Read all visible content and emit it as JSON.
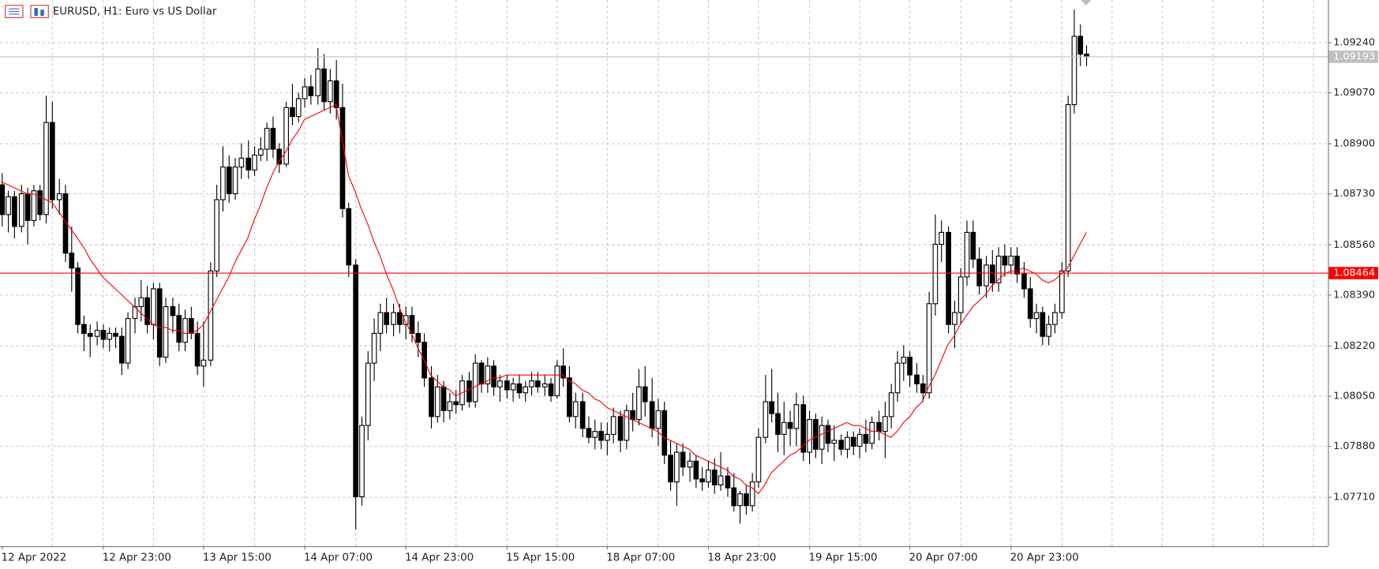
{
  "chart_data": {
    "type": "candlestick",
    "title": "EURUSD, H1:  Euro vs US Dollar",
    "categories": [
      "12 Apr 2022",
      null,
      null,
      null,
      null,
      null,
      null,
      null,
      null,
      null,
      null,
      null,
      null,
      null,
      null,
      null,
      "12 Apr 23:00",
      null,
      null,
      null,
      null,
      null,
      null,
      null,
      null,
      null,
      null,
      null,
      null,
      null,
      null,
      null,
      "13 Apr 15:00",
      null,
      null,
      null,
      null,
      null,
      null,
      null,
      null,
      null,
      null,
      null,
      null,
      null,
      null,
      null,
      "14 Apr 07:00",
      null,
      null,
      null,
      null,
      null,
      null,
      null,
      null,
      null,
      null,
      null,
      null,
      null,
      null,
      null,
      "14 Apr 23:00",
      null,
      null,
      null,
      null,
      null,
      null,
      null,
      null,
      null,
      null,
      null,
      null,
      null,
      null,
      null,
      "15 Apr 15:00",
      null,
      null,
      null,
      null,
      null,
      null,
      null,
      null,
      null,
      null,
      null,
      null,
      null,
      null,
      null,
      "18 Apr 07:00",
      null,
      null,
      null,
      null,
      null,
      null,
      null,
      null,
      null,
      null,
      null,
      null,
      null,
      null,
      null,
      "18 Apr 23:00",
      null,
      null,
      null,
      null,
      null,
      null,
      null,
      null,
      null,
      null,
      null,
      null,
      null,
      null,
      null,
      "19 Apr 15:00",
      null,
      null,
      null,
      null,
      null,
      null,
      null,
      null,
      null,
      null,
      null,
      null,
      null,
      null,
      null,
      "20 Apr 07:00",
      null,
      null,
      null,
      null,
      null,
      null,
      null,
      null,
      null,
      null,
      null,
      null,
      null,
      null,
      null,
      "20 Apr 23:00",
      null,
      null,
      null,
      null,
      null,
      null,
      null,
      null,
      null,
      null,
      null,
      null
    ],
    "ohlc": [
      [
        1.0876,
        1.088,
        1.0862,
        1.0866
      ],
      [
        1.0866,
        1.0874,
        1.086,
        1.0872
      ],
      [
        1.0872,
        1.0874,
        1.0858,
        1.0862
      ],
      [
        1.0862,
        1.0876,
        1.086,
        1.0873
      ],
      [
        1.0873,
        1.0875,
        1.0856,
        1.0864
      ],
      [
        1.0864,
        1.0876,
        1.0862,
        1.0874
      ],
      [
        1.0874,
        1.0876,
        1.0864,
        1.0866
      ],
      [
        1.0866,
        1.0906,
        1.0863,
        1.0897
      ],
      [
        1.0897,
        1.0904,
        1.0868,
        1.0871
      ],
      [
        1.0871,
        1.0878,
        1.0866,
        1.0873
      ],
      [
        1.0873,
        1.0876,
        1.085,
        1.0853
      ],
      [
        1.0853,
        1.0862,
        1.084,
        1.0848
      ],
      [
        1.0848,
        1.085,
        1.0826,
        1.0829
      ],
      [
        1.0829,
        1.0832,
        1.082,
        1.0826
      ],
      [
        1.0826,
        1.0829,
        1.0818,
        1.0825
      ],
      [
        1.0825,
        1.083,
        1.0822,
        1.0827
      ],
      [
        1.0827,
        1.0829,
        1.0821,
        1.0824
      ],
      [
        1.0824,
        1.0828,
        1.082,
        1.0826
      ],
      [
        1.0826,
        1.0828,
        1.0821,
        1.0825
      ],
      [
        1.0825,
        1.0828,
        1.0812,
        1.0816
      ],
      [
        1.0816,
        1.0833,
        1.0814,
        1.0831
      ],
      [
        1.0831,
        1.0838,
        1.0826,
        1.0835
      ],
      [
        1.0835,
        1.0844,
        1.083,
        1.0838
      ],
      [
        1.0838,
        1.0842,
        1.0826,
        1.0829
      ],
      [
        1.0829,
        1.0843,
        1.0824,
        1.0841
      ],
      [
        1.0841,
        1.0843,
        1.0815,
        1.0818
      ],
      [
        1.0818,
        1.0838,
        1.0816,
        1.0835
      ],
      [
        1.0835,
        1.0838,
        1.0826,
        1.0832
      ],
      [
        1.0832,
        1.0836,
        1.082,
        1.0823
      ],
      [
        1.0823,
        1.0834,
        1.082,
        1.0831
      ],
      [
        1.0831,
        1.0835,
        1.0824,
        1.0826
      ],
      [
        1.0826,
        1.083,
        1.0812,
        1.0815
      ],
      [
        1.0815,
        1.083,
        1.0808,
        1.0817
      ],
      [
        1.0817,
        1.085,
        1.0815,
        1.0847
      ],
      [
        1.0847,
        1.0876,
        1.0845,
        1.0871
      ],
      [
        1.0871,
        1.0889,
        1.0867,
        1.0882
      ],
      [
        1.0882,
        1.0886,
        1.087,
        1.0873
      ],
      [
        1.0873,
        1.0885,
        1.0871,
        1.0882
      ],
      [
        1.0882,
        1.089,
        1.0878,
        1.0885
      ],
      [
        1.0885,
        1.0891,
        1.0878,
        1.0881
      ],
      [
        1.0881,
        1.0889,
        1.0879,
        1.0886
      ],
      [
        1.0886,
        1.0892,
        1.0884,
        1.0888
      ],
      [
        1.0888,
        1.0897,
        1.0884,
        1.0895
      ],
      [
        1.0895,
        1.0899,
        1.0885,
        1.0888
      ],
      [
        1.0888,
        1.089,
        1.088,
        1.0883
      ],
      [
        1.0883,
        1.0904,
        1.0882,
        1.0902
      ],
      [
        1.0902,
        1.091,
        1.0896,
        1.0899
      ],
      [
        1.0899,
        1.0907,
        1.0897,
        1.0905
      ],
      [
        1.0905,
        1.0912,
        1.0902,
        1.0909
      ],
      [
        1.0909,
        1.0913,
        1.0903,
        1.0906
      ],
      [
        1.0906,
        1.0922,
        1.0903,
        1.0915
      ],
      [
        1.0915,
        1.092,
        1.0901,
        1.0904
      ],
      [
        1.0904,
        1.0915,
        1.09,
        1.0911
      ],
      [
        1.0911,
        1.0918,
        1.0898,
        1.0902
      ],
      [
        1.0902,
        1.091,
        1.0865,
        1.0868
      ],
      [
        1.0868,
        1.087,
        1.0845,
        1.0849
      ],
      [
        1.0849,
        1.0851,
        1.076,
        1.0771
      ],
      [
        1.0771,
        1.0798,
        1.0768,
        1.0795
      ],
      [
        1.0795,
        1.082,
        1.079,
        1.0816
      ],
      [
        1.0816,
        1.0831,
        1.081,
        1.0826
      ],
      [
        1.0826,
        1.0836,
        1.082,
        1.0833
      ],
      [
        1.0833,
        1.0838,
        1.0826,
        1.0829
      ],
      [
        1.0829,
        1.0836,
        1.0825,
        1.0833
      ],
      [
        1.0833,
        1.0836,
        1.0826,
        1.0829
      ],
      [
        1.0829,
        1.0835,
        1.0824,
        1.0832
      ],
      [
        1.0832,
        1.0835,
        1.0823,
        1.0826
      ],
      [
        1.0826,
        1.083,
        1.0818,
        1.0823
      ],
      [
        1.0823,
        1.0826,
        1.0808,
        1.0811
      ],
      [
        1.0811,
        1.0815,
        1.0794,
        1.0798
      ],
      [
        1.0798,
        1.0812,
        1.0796,
        1.0808
      ],
      [
        1.0808,
        1.081,
        1.0796,
        1.08
      ],
      [
        1.08,
        1.0806,
        1.0797,
        1.0803
      ],
      [
        1.0803,
        1.0807,
        1.0799,
        1.0802
      ],
      [
        1.0802,
        1.0812,
        1.08,
        1.081
      ],
      [
        1.081,
        1.0813,
        1.0801,
        1.0803
      ],
      [
        1.0803,
        1.0819,
        1.0801,
        1.0816
      ],
      [
        1.0816,
        1.0817,
        1.0806,
        1.0809
      ],
      [
        1.0809,
        1.0818,
        1.0806,
        1.0815
      ],
      [
        1.0815,
        1.0817,
        1.0805,
        1.0808
      ],
      [
        1.0808,
        1.0812,
        1.0803,
        1.081
      ],
      [
        1.081,
        1.0812,
        1.0804,
        1.0807
      ],
      [
        1.0807,
        1.0811,
        1.0803,
        1.0809
      ],
      [
        1.0809,
        1.0812,
        1.0804,
        1.0806
      ],
      [
        1.0806,
        1.081,
        1.0803,
        1.0808
      ],
      [
        1.0808,
        1.0813,
        1.0805,
        1.081
      ],
      [
        1.081,
        1.0813,
        1.0806,
        1.0808
      ],
      [
        1.0808,
        1.0812,
        1.0805,
        1.0809
      ],
      [
        1.0809,
        1.0811,
        1.0803,
        1.0805
      ],
      [
        1.0805,
        1.0817,
        1.0804,
        1.0815
      ],
      [
        1.0815,
        1.0821,
        1.0808,
        1.0811
      ],
      [
        1.0811,
        1.0815,
        1.0796,
        1.0798
      ],
      [
        1.0798,
        1.0806,
        1.0794,
        1.0803
      ],
      [
        1.0803,
        1.0806,
        1.0791,
        1.0794
      ],
      [
        1.0794,
        1.0798,
        1.0789,
        1.0791
      ],
      [
        1.0791,
        1.0797,
        1.0787,
        1.0793
      ],
      [
        1.0793,
        1.0796,
        1.0787,
        1.079
      ],
      [
        1.079,
        1.0796,
        1.0785,
        1.0792
      ],
      [
        1.0792,
        1.0801,
        1.0789,
        1.0798
      ],
      [
        1.0798,
        1.08,
        1.0786,
        1.079
      ],
      [
        1.079,
        1.0802,
        1.0787,
        1.08
      ],
      [
        1.08,
        1.0806,
        1.0793,
        1.0797
      ],
      [
        1.0797,
        1.0814,
        1.0795,
        1.0808
      ],
      [
        1.0808,
        1.0815,
        1.0798,
        1.0803
      ],
      [
        1.0803,
        1.0811,
        1.0791,
        1.0794
      ],
      [
        1.0794,
        1.0804,
        1.0788,
        1.08
      ],
      [
        1.08,
        1.0803,
        1.0782,
        1.0785
      ],
      [
        1.0785,
        1.079,
        1.0773,
        1.0776
      ],
      [
        1.0776,
        1.0789,
        1.0768,
        1.0786
      ],
      [
        1.0786,
        1.0789,
        1.0778,
        1.0781
      ],
      [
        1.0781,
        1.0786,
        1.0776,
        1.0783
      ],
      [
        1.0783,
        1.0785,
        1.0774,
        1.0777
      ],
      [
        1.0777,
        1.0781,
        1.0773,
        1.0776
      ],
      [
        1.0776,
        1.0783,
        1.0774,
        1.078
      ],
      [
        1.078,
        1.0784,
        1.0772,
        1.0775
      ],
      [
        1.0775,
        1.0786,
        1.0773,
        1.0778
      ],
      [
        1.0778,
        1.0781,
        1.0771,
        1.0774
      ],
      [
        1.0774,
        1.0779,
        1.0766,
        1.0768
      ],
      [
        1.0768,
        1.0773,
        1.0762,
        1.0772
      ],
      [
        1.0772,
        1.0775,
        1.0765,
        1.0768
      ],
      [
        1.0768,
        1.0779,
        1.0766,
        1.0776
      ],
      [
        1.0776,
        1.0794,
        1.0774,
        1.0791
      ],
      [
        1.0791,
        1.0812,
        1.0789,
        1.0803
      ],
      [
        1.0803,
        1.0814,
        1.0796,
        1.0799
      ],
      [
        1.0799,
        1.0806,
        1.0786,
        1.0792
      ],
      [
        1.0792,
        1.0803,
        1.0785,
        1.0796
      ],
      [
        1.0796,
        1.08,
        1.0788,
        1.0794
      ],
      [
        1.0794,
        1.0806,
        1.0788,
        1.0802
      ],
      [
        1.0802,
        1.0805,
        1.0783,
        1.0786
      ],
      [
        1.0786,
        1.08,
        1.0782,
        1.0797
      ],
      [
        1.0797,
        1.0799,
        1.0784,
        1.0787
      ],
      [
        1.0787,
        1.0798,
        1.0782,
        1.0795
      ],
      [
        1.0795,
        1.0797,
        1.0786,
        1.0789
      ],
      [
        1.0789,
        1.0795,
        1.0783,
        1.079
      ],
      [
        1.079,
        1.0792,
        1.0785,
        1.0787
      ],
      [
        1.0787,
        1.0793,
        1.0784,
        1.0791
      ],
      [
        1.0791,
        1.0793,
        1.0785,
        1.0788
      ],
      [
        1.0788,
        1.0794,
        1.0784,
        1.0792
      ],
      [
        1.0792,
        1.0797,
        1.0786,
        1.0789
      ],
      [
        1.0789,
        1.0798,
        1.0787,
        1.0796
      ],
      [
        1.0796,
        1.08,
        1.079,
        1.0793
      ],
      [
        1.0793,
        1.0803,
        1.0784,
        1.0798
      ],
      [
        1.0798,
        1.0809,
        1.0794,
        1.0806
      ],
      [
        1.0806,
        1.082,
        1.0803,
        1.0816
      ],
      [
        1.0816,
        1.0822,
        1.081,
        1.0818
      ],
      [
        1.0818,
        1.082,
        1.0808,
        1.0812
      ],
      [
        1.0812,
        1.0816,
        1.0806,
        1.0809
      ],
      [
        1.0809,
        1.0812,
        1.0803,
        1.0806
      ],
      [
        1.0806,
        1.084,
        1.0804,
        1.0836
      ],
      [
        1.0836,
        1.0866,
        1.0832,
        1.0856
      ],
      [
        1.0856,
        1.0864,
        1.085,
        1.086
      ],
      [
        1.086,
        1.0862,
        1.0826,
        1.0829
      ],
      [
        1.0829,
        1.0837,
        1.0821,
        1.0833
      ],
      [
        1.0833,
        1.0848,
        1.0829,
        1.0845
      ],
      [
        1.0845,
        1.0864,
        1.0842,
        1.086
      ],
      [
        1.086,
        1.0864,
        1.0848,
        1.0851
      ],
      [
        1.0851,
        1.0855,
        1.0839,
        1.0842
      ],
      [
        1.0842,
        1.0852,
        1.0838,
        1.0849
      ],
      [
        1.0849,
        1.0854,
        1.084,
        1.0843
      ],
      [
        1.0843,
        1.0855,
        1.084,
        1.0852
      ],
      [
        1.0852,
        1.0856,
        1.0845,
        1.0849
      ],
      [
        1.0849,
        1.0855,
        1.0846,
        1.0852
      ],
      [
        1.0852,
        1.0855,
        1.0843,
        1.0846
      ],
      [
        1.0846,
        1.085,
        1.0838,
        1.0841
      ],
      [
        1.0841,
        1.0845,
        1.0828,
        1.0831
      ],
      [
        1.0831,
        1.0836,
        1.0826,
        1.0833
      ],
      [
        1.0833,
        1.0835,
        1.0822,
        1.0825
      ],
      [
        1.0825,
        1.0832,
        1.0822,
        1.0829
      ],
      [
        1.0829,
        1.0836,
        1.0826,
        1.0833
      ],
      [
        1.0833,
        1.085,
        1.0831,
        1.0847
      ],
      [
        1.0847,
        1.0906,
        1.0845,
        1.0903
      ],
      [
        1.0903,
        1.0935,
        1.09,
        1.0926
      ],
      [
        1.0926,
        1.093,
        1.0916,
        1.092
      ],
      [
        1.092,
        1.0923,
        1.0916,
        1.09193
      ]
    ],
    "up_color": "#ffffff",
    "down_color": "#000000",
    "outline_color": "#000000",
    "ma": {
      "color": "#ff0000",
      "values": [
        1.0877,
        1.0876,
        1.0875,
        1.0874,
        1.0873,
        1.0873,
        1.0872,
        1.0871,
        1.087,
        1.0867,
        1.0864,
        1.0861,
        1.0858,
        1.0855,
        1.0851,
        1.0848,
        1.0845,
        1.0843,
        1.0841,
        1.0839,
        1.0837,
        1.0835,
        1.0833,
        1.0831,
        1.0829,
        1.0828,
        1.0828,
        1.0827,
        1.0827,
        1.0826,
        1.0826,
        1.0827,
        1.0829,
        1.0833,
        1.0837,
        1.0841,
        1.0845,
        1.085,
        1.0854,
        1.0858,
        1.0864,
        1.0869,
        1.0875,
        1.088,
        1.0884,
        1.0887,
        1.0891,
        1.0894,
        1.0898,
        1.0899,
        1.09,
        1.0901,
        1.0902,
        1.0903,
        1.0891,
        1.0879,
        1.0874,
        1.0868,
        1.0863,
        1.0857,
        1.0852,
        1.0846,
        1.0841,
        1.0835,
        1.083,
        1.0826,
        1.0821,
        1.0817,
        1.0812,
        1.081,
        1.0808,
        1.0807,
        1.0805,
        1.0806,
        1.0807,
        1.0808,
        1.0809,
        1.081,
        1.0811,
        1.0811,
        1.0812,
        1.0812,
        1.0812,
        1.0812,
        1.0812,
        1.0812,
        1.0812,
        1.0812,
        1.0812,
        1.0812,
        1.081,
        1.0809,
        1.0807,
        1.0806,
        1.0804,
        1.0803,
        1.0801,
        1.08,
        1.0799,
        1.0798,
        1.0797,
        1.0796,
        1.0795,
        1.0794,
        1.0793,
        1.0791,
        1.079,
        1.0789,
        1.0788,
        1.0787,
        1.0785,
        1.0784,
        1.0783,
        1.0782,
        1.0781,
        1.078,
        1.0778,
        1.0777,
        1.0775,
        1.0774,
        1.0772,
        1.0775,
        1.0779,
        1.0781,
        1.0783,
        1.0785,
        1.0786,
        1.0788,
        1.079,
        1.0791,
        1.0792,
        1.0793,
        1.0794,
        1.0795,
        1.0796,
        1.0795,
        1.0795,
        1.0794,
        1.0793,
        1.0793,
        1.0792,
        1.0791,
        1.0793,
        1.0796,
        1.0798,
        1.0801,
        1.0803,
        1.0808,
        1.0812,
        1.0817,
        1.0822,
        1.0825,
        1.0829,
        1.0832,
        1.0835,
        1.0837,
        1.0839,
        1.0842,
        1.0844,
        1.0846,
        1.0847,
        1.0847,
        1.0848,
        1.0847,
        1.0846,
        1.0844,
        1.0843,
        1.0844,
        1.0846,
        1.0848,
        1.0852,
        1.0856,
        1.086
      ]
    },
    "levels": [
      {
        "value": 1.08464,
        "color": "#ff0000"
      },
      {
        "value": 1.09193,
        "color": "#c0c0c0"
      }
    ],
    "ylim": [
      1.07544,
      1.09382
    ],
    "yticks": [
      {
        "value": 1.0924,
        "label": "1.09240"
      },
      {
        "value": 1.0907,
        "label": "1.09070"
      },
      {
        "value": 1.089,
        "label": "1.08900"
      },
      {
        "value": 1.0873,
        "label": "1.08730"
      },
      {
        "value": 1.0856,
        "label": "1.08560"
      },
      {
        "value": 1.0839,
        "label": "1.08390"
      },
      {
        "value": 1.0822,
        "label": "1.08220"
      },
      {
        "value": 1.0805,
        "label": "1.08050"
      },
      {
        "value": 1.0788,
        "label": "1.07880"
      },
      {
        "value": 1.0771,
        "label": "1.07710"
      }
    ],
    "grid": true
  }
}
